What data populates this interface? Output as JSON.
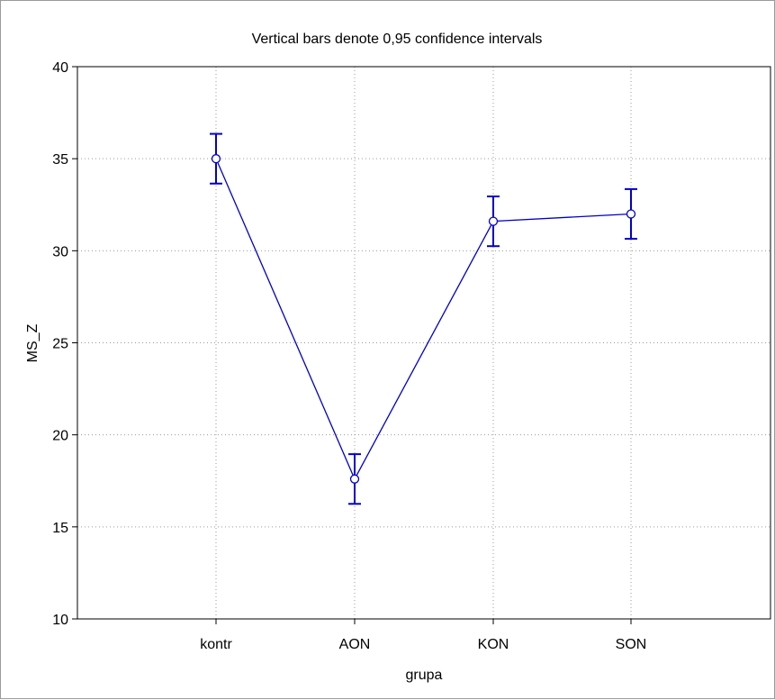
{
  "chart_data": {
    "type": "line",
    "title": "Vertical bars denote 0,95 confidence intervals",
    "xlabel": "grupa",
    "ylabel": "MS_Z",
    "categories": [
      "kontr",
      "AON",
      "KON",
      "SON"
    ],
    "series": [
      {
        "values": [
          35.0,
          17.6,
          31.6,
          32.0
        ],
        "ci_lower": [
          33.65,
          16.25,
          30.25,
          30.65
        ],
        "ci_upper": [
          36.35,
          18.95,
          32.95,
          33.35
        ],
        "color": "#0000cc"
      }
    ],
    "ylim": [
      10,
      40
    ],
    "yticks": [
      "10",
      "15",
      "20",
      "25",
      "30",
      "35",
      "40"
    ],
    "grid": true,
    "grid_style": "dotted"
  }
}
